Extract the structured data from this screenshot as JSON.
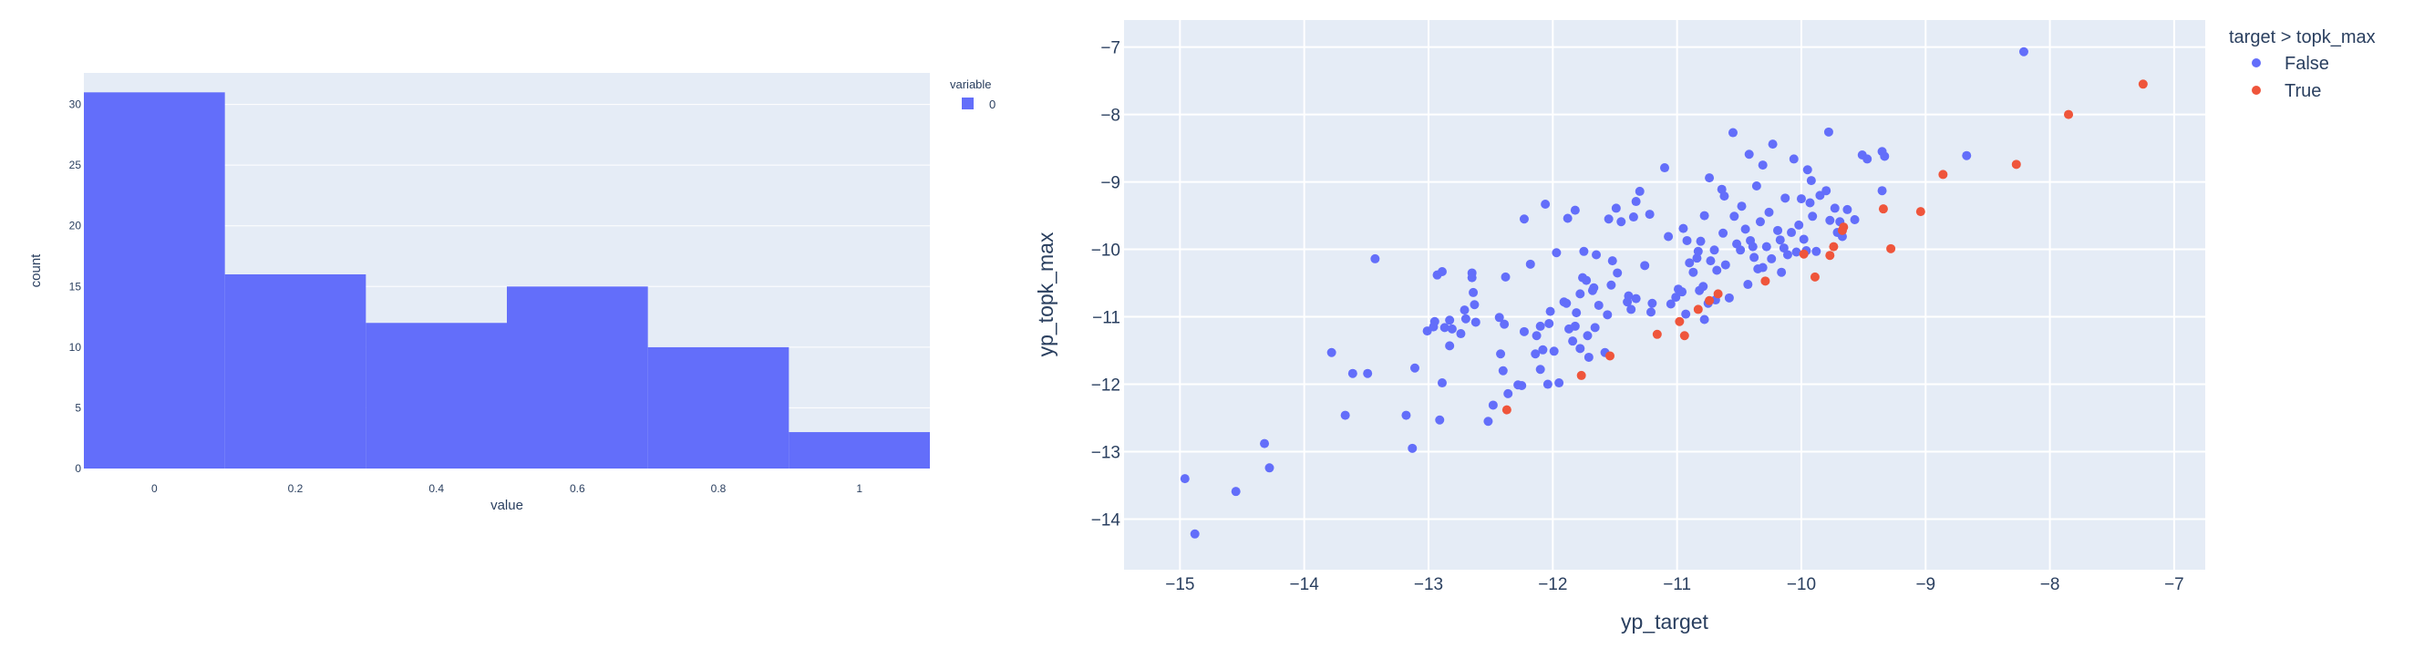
{
  "chart_data": [
    {
      "type": "bar",
      "subtype": "histogram",
      "xlabel": "value",
      "ylabel": "count",
      "legend": {
        "title": "variable",
        "position": "top-right",
        "items": [
          {
            "name": "0",
            "color": "#636efa"
          }
        ]
      },
      "bins": [
        {
          "x0": -0.1,
          "x1": 0.1,
          "count": 31
        },
        {
          "x0": 0.1,
          "x1": 0.3,
          "count": 16
        },
        {
          "x0": 0.3,
          "x1": 0.5,
          "count": 12
        },
        {
          "x0": 0.5,
          "x1": 0.7,
          "count": 15
        },
        {
          "x0": 0.7,
          "x1": 0.9,
          "count": 10
        },
        {
          "x0": 0.9,
          "x1": 1.1,
          "count": 3
        }
      ],
      "xlim": [
        -0.1,
        1.1
      ],
      "ylim": [
        0,
        32.6
      ],
      "xticks": [
        0,
        0.2,
        0.4,
        0.6,
        0.8,
        1
      ],
      "xtick_labels": [
        "0",
        "0.2",
        "0.4",
        "0.6",
        "0.8",
        "1"
      ],
      "yticks": [
        0,
        5,
        10,
        15,
        20,
        25,
        30
      ],
      "ytick_labels": [
        "0",
        "5",
        "10",
        "15",
        "20",
        "25",
        "30"
      ],
      "grid": true,
      "bar_color": "#636efa",
      "plot_bg": "#e5ecf6"
    },
    {
      "type": "scatter",
      "xlabel": "yp_target",
      "ylabel": "yp_topk_max",
      "legend": {
        "title": "target > topk_max",
        "position": "top-right",
        "items": [
          {
            "name": "False",
            "color": "#636efa"
          },
          {
            "name": "True",
            "color": "#ef553b"
          }
        ]
      },
      "xlim": [
        -15.45,
        -6.75
      ],
      "ylim": [
        -14.75,
        -6.6
      ],
      "xticks": [
        -15,
        -14,
        -13,
        -12,
        -11,
        -10,
        -9,
        -8,
        -7
      ],
      "xtick_labels": [
        "−15",
        "−14",
        "−13",
        "−12",
        "−11",
        "−10",
        "−9",
        "−8",
        "−7"
      ],
      "yticks": [
        -14,
        -13,
        -12,
        -11,
        -10,
        -9,
        -8,
        -7
      ],
      "ytick_labels": [
        "−14",
        "−13",
        "−12",
        "−11",
        "−10",
        "−9",
        "−8",
        "−7"
      ],
      "grid": true,
      "plot_bg": "#e5ecf6",
      "series": [
        {
          "name": "False",
          "color": "#636efa",
          "points": [
            [
              -14.96,
              -13.4
            ],
            [
              -14.88,
              -14.22
            ],
            [
              -14.55,
              -13.59
            ],
            [
              -14.32,
              -12.88
            ],
            [
              -14.28,
              -13.24
            ],
            [
              -13.78,
              -11.53
            ],
            [
              -13.67,
              -12.46
            ],
            [
              -13.61,
              -11.84
            ],
            [
              -13.49,
              -11.84
            ],
            [
              -13.43,
              -10.14
            ],
            [
              -13.18,
              -12.46
            ],
            [
              -13.13,
              -12.95
            ],
            [
              -13.11,
              -11.76
            ],
            [
              -13.01,
              -11.21
            ],
            [
              -12.96,
              -11.15
            ],
            [
              -12.95,
              -11.07
            ],
            [
              -12.93,
              -10.38
            ],
            [
              -12.91,
              -12.53
            ],
            [
              -12.89,
              -11.98
            ],
            [
              -12.89,
              -10.33
            ],
            [
              -12.87,
              -11.16
            ],
            [
              -12.83,
              -11.43
            ],
            [
              -12.83,
              -11.05
            ],
            [
              -12.81,
              -11.18
            ],
            [
              -12.74,
              -11.25
            ],
            [
              -12.71,
              -10.9
            ],
            [
              -12.7,
              -11.03
            ],
            [
              -12.65,
              -10.42
            ],
            [
              -12.65,
              -10.35
            ],
            [
              -12.64,
              -10.64
            ],
            [
              -12.63,
              -10.82
            ],
            [
              -12.62,
              -11.08
            ],
            [
              -12.52,
              -12.55
            ],
            [
              -12.48,
              -12.31
            ],
            [
              -12.43,
              -11.01
            ],
            [
              -12.42,
              -11.55
            ],
            [
              -12.4,
              -11.8
            ],
            [
              -12.39,
              -11.11
            ],
            [
              -12.38,
              -10.41
            ],
            [
              -12.36,
              -12.14
            ],
            [
              -12.28,
              -12.01
            ],
            [
              -12.25,
              -12.02
            ],
            [
              -12.23,
              -11.22
            ],
            [
              -12.23,
              -9.55
            ],
            [
              -12.18,
              -10.22
            ],
            [
              -12.14,
              -11.55
            ],
            [
              -12.13,
              -11.28
            ],
            [
              -12.1,
              -11.78
            ],
            [
              -12.1,
              -11.14
            ],
            [
              -12.08,
              -11.49
            ],
            [
              -12.06,
              -9.33
            ],
            [
              -12.04,
              -12.0
            ],
            [
              -12.03,
              -11.1
            ],
            [
              -12.02,
              -10.92
            ],
            [
              -11.99,
              -11.51
            ],
            [
              -11.97,
              -10.05
            ],
            [
              -11.95,
              -11.98
            ],
            [
              -11.91,
              -10.78
            ],
            [
              -11.89,
              -10.8
            ],
            [
              -11.88,
              -9.54
            ],
            [
              -11.87,
              -11.18
            ],
            [
              -11.84,
              -11.36
            ],
            [
              -11.82,
              -9.42
            ],
            [
              -11.82,
              -11.14
            ],
            [
              -11.81,
              -10.94
            ],
            [
              -11.78,
              -10.66
            ],
            [
              -11.78,
              -11.47
            ],
            [
              -11.76,
              -10.42
            ],
            [
              -11.75,
              -10.03
            ],
            [
              -11.73,
              -10.46
            ],
            [
              -11.72,
              -11.28
            ],
            [
              -11.71,
              -11.6
            ],
            [
              -11.68,
              -10.61
            ],
            [
              -11.67,
              -10.57
            ],
            [
              -11.66,
              -11.16
            ],
            [
              -11.65,
              -10.08
            ],
            [
              -11.63,
              -10.83
            ],
            [
              -11.58,
              -11.53
            ],
            [
              -11.56,
              -10.97
            ],
            [
              -11.55,
              -9.55
            ],
            [
              -11.53,
              -10.53
            ],
            [
              -11.52,
              -10.17
            ],
            [
              -11.49,
              -9.39
            ],
            [
              -11.48,
              -10.35
            ],
            [
              -11.45,
              -9.59
            ],
            [
              -11.4,
              -10.78
            ],
            [
              -11.39,
              -10.69
            ],
            [
              -11.37,
              -10.89
            ],
            [
              -11.35,
              -9.52
            ],
            [
              -11.33,
              -9.29
            ],
            [
              -11.33,
              -10.73
            ],
            [
              -11.3,
              -9.14
            ],
            [
              -11.26,
              -10.24
            ],
            [
              -11.22,
              -9.48
            ],
            [
              -11.21,
              -10.93
            ],
            [
              -11.2,
              -10.8
            ],
            [
              -11.1,
              -8.79
            ],
            [
              -11.07,
              -9.81
            ],
            [
              -11.05,
              -10.81
            ],
            [
              -11.01,
              -10.71
            ],
            [
              -10.99,
              -10.59
            ],
            [
              -10.96,
              -10.63
            ],
            [
              -10.95,
              -9.69
            ],
            [
              -10.93,
              -10.96
            ],
            [
              -10.92,
              -9.87
            ],
            [
              -10.9,
              -10.2
            ],
            [
              -10.87,
              -10.34
            ],
            [
              -10.84,
              -10.13
            ],
            [
              -10.83,
              -10.03
            ],
            [
              -10.82,
              -10.61
            ],
            [
              -10.81,
              -9.88
            ],
            [
              -10.79,
              -10.55
            ],
            [
              -10.78,
              -11.04
            ],
            [
              -10.78,
              -9.5
            ],
            [
              -10.75,
              -10.8
            ],
            [
              -10.74,
              -8.94
            ],
            [
              -10.73,
              -10.17
            ],
            [
              -10.7,
              -10.01
            ],
            [
              -10.69,
              -10.75
            ],
            [
              -10.68,
              -10.31
            ],
            [
              -10.64,
              -9.11
            ],
            [
              -10.63,
              -9.76
            ],
            [
              -10.62,
              -9.21
            ],
            [
              -10.61,
              -10.23
            ],
            [
              -10.58,
              -10.72
            ],
            [
              -10.55,
              -8.27
            ],
            [
              -10.54,
              -9.51
            ],
            [
              -10.52,
              -9.92
            ],
            [
              -10.49,
              -10.01
            ],
            [
              -10.48,
              -9.36
            ],
            [
              -10.45,
              -9.7
            ],
            [
              -10.43,
              -10.52
            ],
            [
              -10.42,
              -8.59
            ],
            [
              -10.41,
              -9.87
            ],
            [
              -10.39,
              -9.96
            ],
            [
              -10.38,
              -10.12
            ],
            [
              -10.36,
              -9.06
            ],
            [
              -10.35,
              -10.29
            ],
            [
              -10.33,
              -9.59
            ],
            [
              -10.31,
              -10.27
            ],
            [
              -10.31,
              -8.75
            ],
            [
              -10.28,
              -9.96
            ],
            [
              -10.26,
              -9.45
            ],
            [
              -10.24,
              -10.14
            ],
            [
              -10.23,
              -8.44
            ],
            [
              -10.19,
              -9.72
            ],
            [
              -10.17,
              -9.86
            ],
            [
              -10.16,
              -10.34
            ],
            [
              -10.14,
              -9.98
            ],
            [
              -10.13,
              -9.24
            ],
            [
              -10.11,
              -10.08
            ],
            [
              -10.08,
              -9.75
            ],
            [
              -10.06,
              -8.66
            ],
            [
              -10.04,
              -10.04
            ],
            [
              -10.02,
              -9.64
            ],
            [
              -10.0,
              -9.25
            ],
            [
              -9.98,
              -9.85
            ],
            [
              -9.96,
              -10.02
            ],
            [
              -9.95,
              -8.82
            ],
            [
              -9.93,
              -9.31
            ],
            [
              -9.92,
              -8.98
            ],
            [
              -9.91,
              -9.51
            ],
            [
              -9.88,
              -10.03
            ],
            [
              -9.85,
              -9.2
            ],
            [
              -9.8,
              -9.13
            ],
            [
              -9.78,
              -8.26
            ],
            [
              -9.77,
              -9.57
            ],
            [
              -9.73,
              -9.39
            ],
            [
              -9.71,
              -9.75
            ],
            [
              -9.69,
              -9.59
            ],
            [
              -9.67,
              -9.81
            ],
            [
              -9.63,
              -9.41
            ],
            [
              -9.57,
              -9.56
            ],
            [
              -9.51,
              -8.6
            ],
            [
              -9.47,
              -8.66
            ],
            [
              -9.35,
              -9.13
            ],
            [
              -9.35,
              -8.55
            ],
            [
              -9.33,
              -8.62
            ],
            [
              -8.67,
              -8.61
            ],
            [
              -8.21,
              -7.07
            ]
          ]
        },
        {
          "name": "True",
          "color": "#ef553b",
          "points": [
            [
              -12.37,
              -12.38
            ],
            [
              -11.77,
              -11.87
            ],
            [
              -11.54,
              -11.58
            ],
            [
              -11.16,
              -11.26
            ],
            [
              -10.98,
              -11.07
            ],
            [
              -10.94,
              -11.28
            ],
            [
              -10.83,
              -10.89
            ],
            [
              -10.74,
              -10.76
            ],
            [
              -10.67,
              -10.66
            ],
            [
              -10.29,
              -10.47
            ],
            [
              -9.98,
              -10.07
            ],
            [
              -9.89,
              -10.41
            ],
            [
              -9.77,
              -10.09
            ],
            [
              -9.74,
              -9.96
            ],
            [
              -9.67,
              -9.72
            ],
            [
              -9.66,
              -9.67
            ],
            [
              -9.34,
              -9.4
            ],
            [
              -9.28,
              -9.99
            ],
            [
              -9.04,
              -9.44
            ],
            [
              -8.86,
              -8.89
            ],
            [
              -8.27,
              -8.74
            ],
            [
              -7.85,
              -8.0
            ],
            [
              -7.25,
              -7.55
            ]
          ]
        }
      ]
    }
  ]
}
